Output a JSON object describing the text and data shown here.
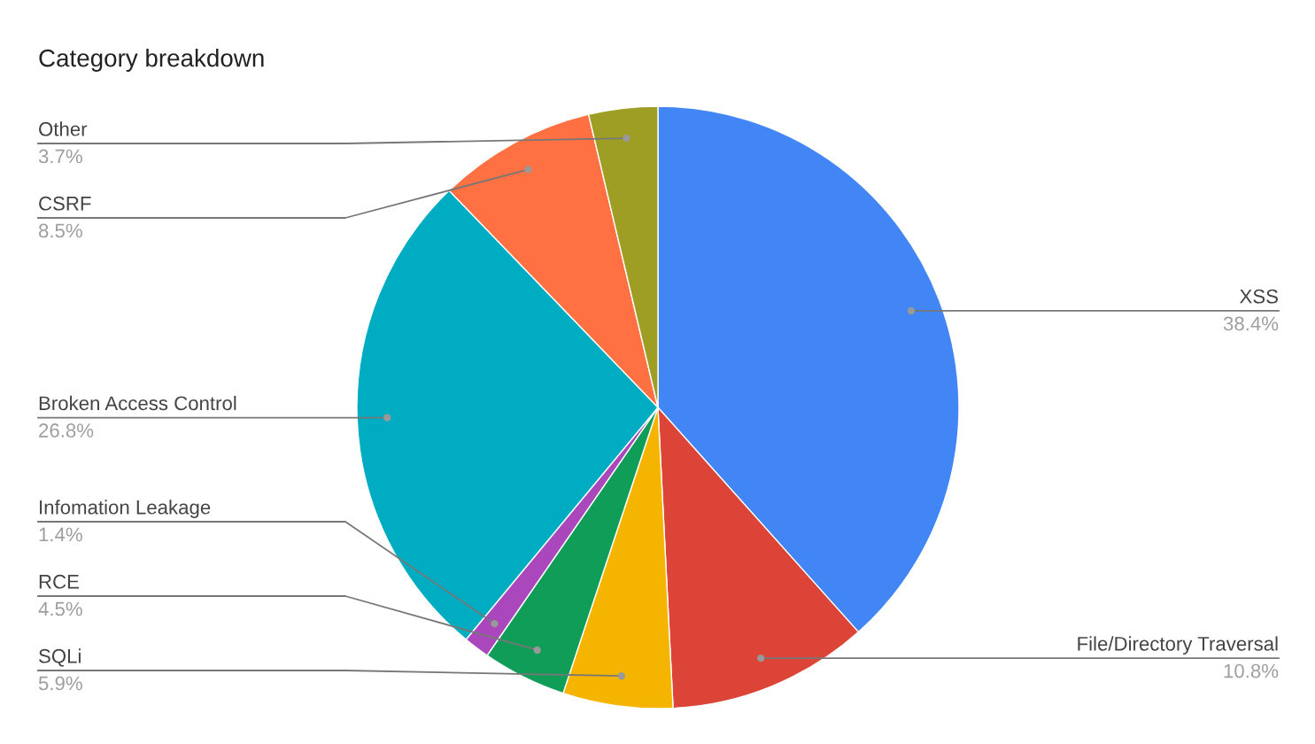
{
  "chart_data": {
    "type": "pie",
    "title": "Category breakdown",
    "categories": [
      "XSS",
      "File/Directory Traversal",
      "SQLi",
      "RCE",
      "Infomation Leakage",
      "Broken Access Control",
      "CSRF",
      "Other"
    ],
    "values": [
      38.4,
      10.8,
      5.9,
      4.5,
      1.4,
      26.8,
      8.5,
      3.7
    ],
    "colors": [
      "#4285f4",
      "#db4437",
      "#f4b400",
      "#0f9d58",
      "#ab47bc",
      "#00acc1",
      "#ff7043",
      "#9e9d24"
    ],
    "value_labels": [
      "38.4%",
      "10.8%",
      "5.9%",
      "4.5%",
      "1.4%",
      "26.8%",
      "8.5%",
      "3.7%"
    ]
  }
}
